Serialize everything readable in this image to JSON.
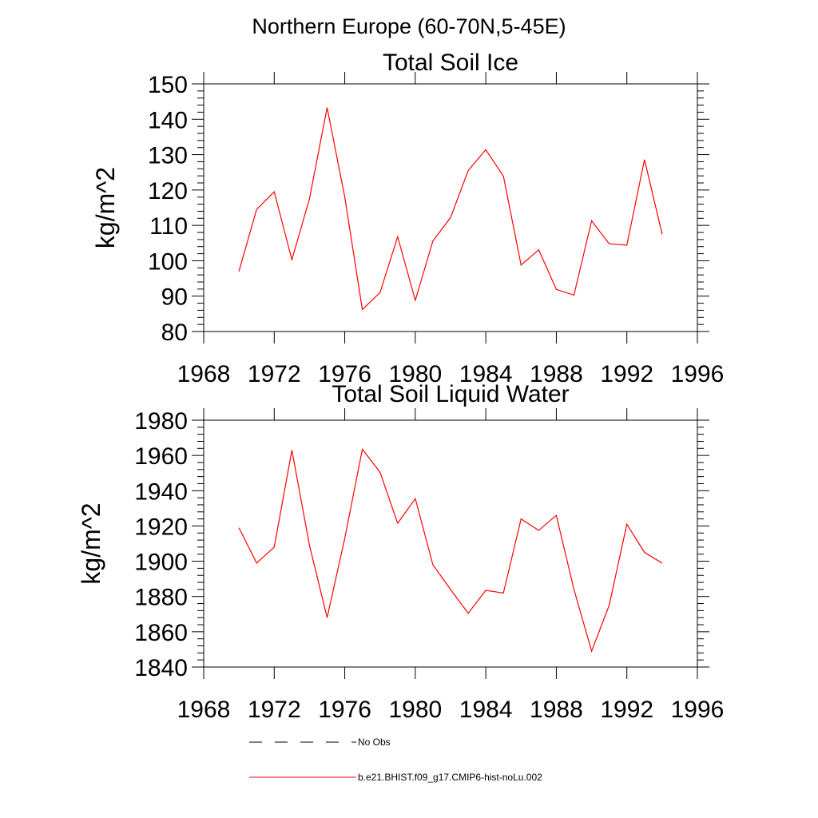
{
  "figure": {
    "suptitle": "Northern Europe (60-70N,5-45E)"
  },
  "legend": {
    "entries": [
      {
        "label": "No Obs",
        "style": "dashed",
        "color": "#000000"
      },
      {
        "label": "b.e21.BHIST.f09_g17.CMIP6-hist-noLu.002",
        "style": "solid",
        "color": "#ff0000"
      }
    ]
  },
  "chart_data": [
    {
      "type": "line",
      "title": "Total Soil Ice",
      "ylabel": "kg/m^2",
      "xlabel": "",
      "xlim": [
        1968,
        1996
      ],
      "ylim": [
        80,
        150
      ],
      "xticks": [
        1968,
        1972,
        1976,
        1980,
        1984,
        1988,
        1992,
        1996
      ],
      "yticks": [
        80,
        90,
        100,
        110,
        120,
        130,
        140,
        150
      ],
      "grid": false,
      "series": [
        {
          "name": "b.e21.BHIST.f09_g17.CMIP6-hist-noLu.002",
          "color": "#ff0000",
          "x": [
            1970,
            1971,
            1972,
            1973,
            1974,
            1975,
            1976,
            1977,
            1978,
            1979,
            1980,
            1981,
            1982,
            1983,
            1984,
            1985,
            1986,
            1987,
            1988,
            1989,
            1990,
            1991,
            1992,
            1993,
            1994
          ],
          "y": [
            97,
            114.5,
            119.5,
            100.3,
            117.5,
            143.3,
            118,
            86.2,
            91,
            106.8,
            88.8,
            105.6,
            112.2,
            125.5,
            131.4,
            123.9,
            98.8,
            103.1,
            91.9,
            90.3,
            111.3,
            104.8,
            104.4,
            128.6,
            107.5
          ]
        }
      ]
    },
    {
      "type": "line",
      "title": "Total Soil Liquid Water",
      "ylabel": "kg/m^2",
      "xlabel": "",
      "xlim": [
        1968,
        1996
      ],
      "ylim": [
        1840,
        1980
      ],
      "xticks": [
        1968,
        1972,
        1976,
        1980,
        1984,
        1988,
        1992,
        1996
      ],
      "yticks": [
        1840,
        1860,
        1880,
        1900,
        1920,
        1940,
        1960,
        1980
      ],
      "grid": false,
      "series": [
        {
          "name": "b.e21.BHIST.f09_g17.CMIP6-hist-noLu.002",
          "color": "#ff0000",
          "x": [
            1970,
            1971,
            1972,
            1973,
            1974,
            1975,
            1976,
            1977,
            1978,
            1979,
            1980,
            1981,
            1982,
            1983,
            1984,
            1985,
            1986,
            1987,
            1988,
            1989,
            1990,
            1991,
            1992,
            1993,
            1994
          ],
          "y": [
            1919,
            1899,
            1908,
            1963,
            1909,
            1868,
            1913,
            1963.5,
            1950.5,
            1921.5,
            1935.5,
            1898,
            1884,
            1870.5,
            1883.5,
            1882,
            1924,
            1917.5,
            1926,
            1884,
            1849,
            1875,
            1921,
            1905,
            1899
          ]
        }
      ]
    }
  ]
}
